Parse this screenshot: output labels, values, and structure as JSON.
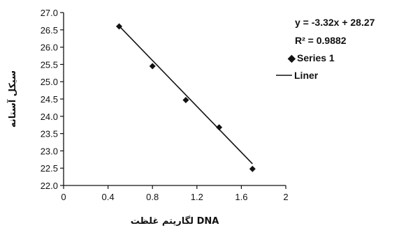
{
  "chart_data": {
    "type": "scatter",
    "xlabel": "DNA لگاریتم غلظت",
    "ylabel": "سیکل آستانه",
    "xlim": [
      0,
      2
    ],
    "ylim": [
      22.0,
      27.0
    ],
    "x_ticks": [
      "0",
      "0.4",
      "0.8",
      "1.2",
      "1.6",
      "2"
    ],
    "x_tick_values": [
      0,
      0.4,
      0.8,
      1.2,
      1.6,
      2
    ],
    "y_ticks": [
      "22.0",
      "22.5",
      "23.0",
      "23.5",
      "24.0",
      "24.5",
      "25.0",
      "25.5",
      "26.0",
      "26.5",
      "27.0"
    ],
    "y_tick_values": [
      22.0,
      22.5,
      23.0,
      23.5,
      24.0,
      24.5,
      25.0,
      25.5,
      26.0,
      26.5,
      27.0
    ],
    "grid": false,
    "legend_position": "right",
    "series": [
      {
        "name": "Series 1",
        "marker": "diamond",
        "color": "#111111",
        "x": [
          0.5,
          0.8,
          1.1,
          1.4,
          1.7
        ],
        "y": [
          26.6,
          25.45,
          24.47,
          23.68,
          22.48
        ]
      }
    ],
    "trendline": {
      "name": "Liner",
      "color": "#111111",
      "slope": -3.32,
      "intercept": 28.27,
      "x_range": [
        0.5,
        1.7
      ]
    },
    "annotations": {
      "equation": "y = -3.32x + 28.27",
      "r_squared": "R² = 0.9882"
    },
    "legend_marker_symbol": "◆"
  }
}
